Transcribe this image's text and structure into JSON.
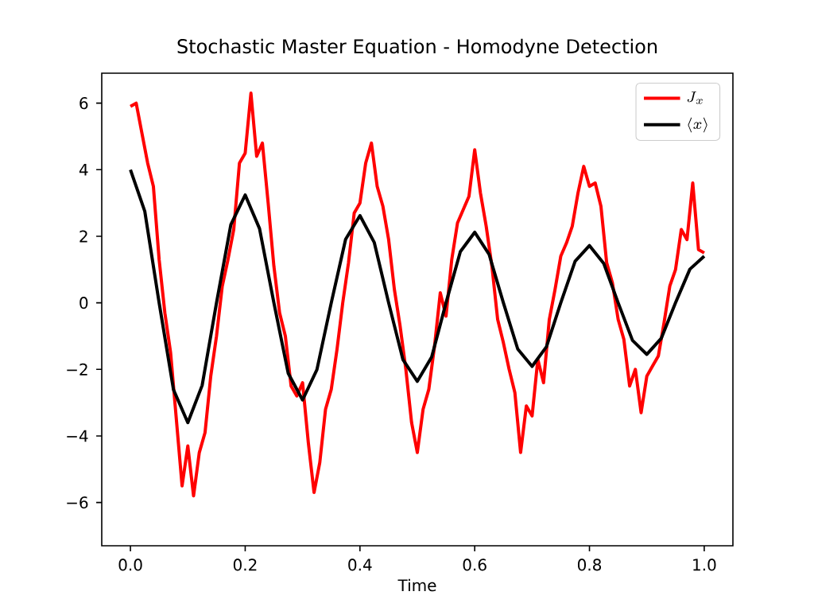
{
  "chart_data": {
    "type": "line",
    "title": "Stochastic Master Equation - Homodyne Detection",
    "xlabel": "Time",
    "xlim": [
      -0.05,
      1.05
    ],
    "ylim": [
      -7.3,
      6.9
    ],
    "xticks": [
      {
        "value": 0,
        "label": "0.0"
      },
      {
        "value": 0.2,
        "label": "0.2"
      },
      {
        "value": 0.4,
        "label": "0.4"
      },
      {
        "value": 0.6,
        "label": "0.6"
      },
      {
        "value": 0.8,
        "label": "0.8"
      },
      {
        "value": 1,
        "label": "1.0"
      }
    ],
    "yticks": [
      {
        "value": -6,
        "label": "−6"
      },
      {
        "value": -4,
        "label": "−4"
      },
      {
        "value": -2,
        "label": "−2"
      },
      0,
      2,
      4,
      6
    ],
    "legend": "top right",
    "grid": false,
    "marker": "none",
    "line_style": "solid",
    "series": [
      {
        "name": "J_x",
        "color": "#ff0000",
        "x": [
          0,
          0.01,
          0.02,
          0.03,
          0.04,
          0.05,
          0.06,
          0.07,
          0.08,
          0.09,
          0.1,
          0.11,
          0.12,
          0.13,
          0.14,
          0.15,
          0.16,
          0.17,
          0.18,
          0.19,
          0.2,
          0.21,
          0.22,
          0.23,
          0.24,
          0.25,
          0.26,
          0.27,
          0.28,
          0.29,
          0.3,
          0.31,
          0.32,
          0.33,
          0.34,
          0.35,
          0.36,
          0.37,
          0.38,
          0.39,
          0.4,
          0.41,
          0.42,
          0.43,
          0.44,
          0.45,
          0.46,
          0.47,
          0.48,
          0.49,
          0.5,
          0.51,
          0.52,
          0.53,
          0.54,
          0.55,
          0.56,
          0.57,
          0.58,
          0.59,
          0.6,
          0.61,
          0.62,
          0.63,
          0.64,
          0.65,
          0.66,
          0.67,
          0.68,
          0.69,
          0.7,
          0.71,
          0.72,
          0.73,
          0.74,
          0.75,
          0.76,
          0.77,
          0.78,
          0.79,
          0.8,
          0.81,
          0.82,
          0.83,
          0.84,
          0.85,
          0.86,
          0.87,
          0.88,
          0.89,
          0.9,
          0.91,
          0.92,
          0.93,
          0.94,
          0.95,
          0.96,
          0.97,
          0.98,
          0.99,
          1.0
        ],
        "values": [
          5.9,
          6.0,
          5.1,
          4.2,
          3.5,
          1.3,
          -0.3,
          -1.5,
          -3.5,
          -5.5,
          -4.3,
          -5.8,
          -4.5,
          -3.9,
          -2.2,
          -1.0,
          0.5,
          1.3,
          2.2,
          4.2,
          4.5,
          6.3,
          4.4,
          4.8,
          3.0,
          1.1,
          -0.3,
          -1.0,
          -2.5,
          -2.8,
          -2.4,
          -4.2,
          -5.7,
          -4.8,
          -3.2,
          -2.6,
          -1.4,
          0.0,
          1.2,
          2.7,
          3.0,
          4.2,
          4.8,
          3.5,
          2.9,
          1.9,
          0.4,
          -0.7,
          -2.0,
          -3.6,
          -4.5,
          -3.2,
          -2.6,
          -1.3,
          0.3,
          -0.4,
          1.3,
          2.4,
          2.8,
          3.2,
          4.6,
          3.3,
          2.3,
          1.1,
          -0.5,
          -1.2,
          -2.0,
          -2.7,
          -4.5,
          -3.1,
          -3.4,
          -1.7,
          -2.4,
          -0.5,
          0.4,
          1.4,
          1.8,
          2.3,
          3.3,
          4.1,
          3.5,
          3.6,
          2.9,
          1.2,
          0.6,
          -0.5,
          -1.1,
          -2.5,
          -2.0,
          -3.3,
          -2.2,
          -1.9,
          -1.6,
          -0.6,
          0.5,
          1.0,
          2.2,
          1.9,
          3.6,
          1.6,
          1.5
        ]
      },
      {
        "name": "\\langle x\\rangle",
        "color": "#000000",
        "x": [
          0,
          0.025,
          0.05,
          0.075,
          0.1,
          0.125,
          0.15,
          0.175,
          0.2,
          0.225,
          0.25,
          0.275,
          0.3,
          0.325,
          0.35,
          0.375,
          0.4,
          0.425,
          0.45,
          0.475,
          0.5,
          0.525,
          0.55,
          0.575,
          0.6,
          0.625,
          0.65,
          0.675,
          0.7,
          0.725,
          0.75,
          0.775,
          0.8,
          0.825,
          0.85,
          0.875,
          0.9,
          0.925,
          0.95,
          0.975,
          1.0
        ],
        "values": [
          4.0,
          2.75,
          0,
          -2.61,
          -3.6,
          -2.48,
          0,
          2.35,
          3.24,
          2.23,
          0,
          -2.12,
          -2.92,
          -2.01,
          0,
          1.91,
          2.62,
          1.81,
          0,
          -1.71,
          -2.36,
          -1.63,
          0,
          1.54,
          2.12,
          1.46,
          0,
          -1.39,
          -1.91,
          -1.32,
          0,
          1.25,
          1.72,
          1.18,
          0,
          -1.13,
          -1.55,
          -1.07,
          0,
          1.01,
          1.4
        ]
      }
    ]
  }
}
